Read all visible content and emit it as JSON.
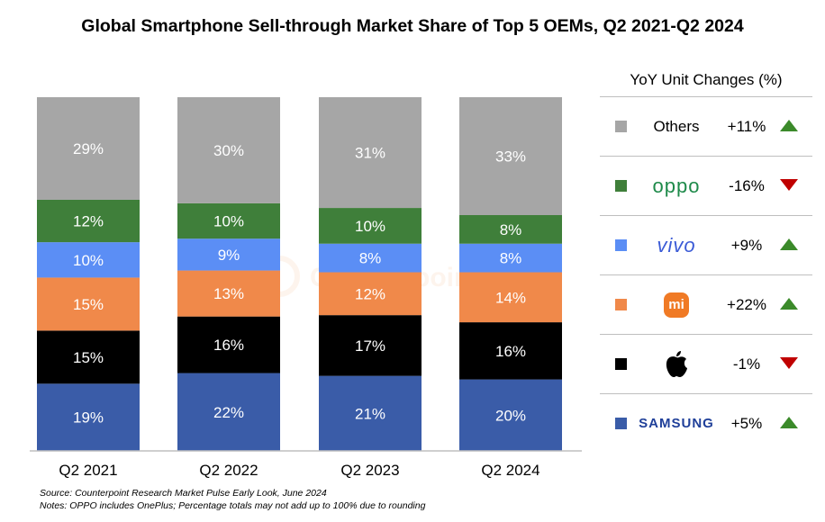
{
  "title": "Global Smartphone Sell-through Market Share of Top 5 OEMs, Q2 2021-Q2 2024",
  "chart_data": {
    "type": "bar",
    "stacked": true,
    "categories": [
      "Q2 2021",
      "Q2 2022",
      "Q2 2023",
      "Q2 2024"
    ],
    "series": [
      {
        "name": "Samsung",
        "color": "#3a5ca8",
        "values": [
          19,
          22,
          21,
          20
        ],
        "labels": [
          "19%",
          "22%",
          "21%",
          "20%"
        ]
      },
      {
        "name": "Apple",
        "color": "#000000",
        "values": [
          15,
          16,
          17,
          16
        ],
        "labels": [
          "15%",
          "16%",
          "17%",
          "16%"
        ]
      },
      {
        "name": "Xiaomi",
        "color": "#f0894a",
        "values": [
          15,
          13,
          12,
          14
        ],
        "labels": [
          "15%",
          "13%",
          "12%",
          "14%"
        ]
      },
      {
        "name": "vivo",
        "color": "#5b8ef5",
        "values": [
          10,
          9,
          8,
          8
        ],
        "labels": [
          "10%",
          "9%",
          "8%",
          "8%"
        ]
      },
      {
        "name": "OPPO",
        "color": "#3f7f3a",
        "values": [
          12,
          10,
          10,
          8
        ],
        "labels": [
          "12%",
          "10%",
          "10%",
          "8%"
        ]
      },
      {
        "name": "Others",
        "color": "#a6a6a6",
        "values": [
          29,
          30,
          31,
          33
        ],
        "labels": [
          "29%",
          "30%",
          "31%",
          "33%"
        ]
      }
    ],
    "legend_placement": "right",
    "grid": false
  },
  "legend": {
    "header": "YoY Unit Changes (%)",
    "rows": [
      {
        "brand": "Others",
        "change": "+11%",
        "direction": "up",
        "color": "#a6a6a6",
        "icon": "others-text"
      },
      {
        "brand": "oppo",
        "change": "-16%",
        "direction": "down",
        "color": "#3f7f3a",
        "icon": "oppo-logo"
      },
      {
        "brand": "vivo",
        "change": "+9%",
        "direction": "up",
        "color": "#5b8ef5",
        "icon": "vivo-logo"
      },
      {
        "brand": "mi",
        "change": "+22%",
        "direction": "up",
        "color": "#f0894a",
        "icon": "xiaomi-logo"
      },
      {
        "brand": "",
        "change": "-1%",
        "direction": "down",
        "color": "#000000",
        "icon": "apple-logo"
      },
      {
        "brand": "SAMSUNG",
        "change": "+5%",
        "direction": "up",
        "color": "#3a5ca8",
        "icon": "samsung-logo"
      }
    ]
  },
  "notes": {
    "source": "Source: Counterpoint Research Market Pulse Early Look, June 2024",
    "note": "Notes: OPPO includes OnePlus; Percentage totals may not add up to 100% due to rounding"
  },
  "watermark": "Counterpoint"
}
